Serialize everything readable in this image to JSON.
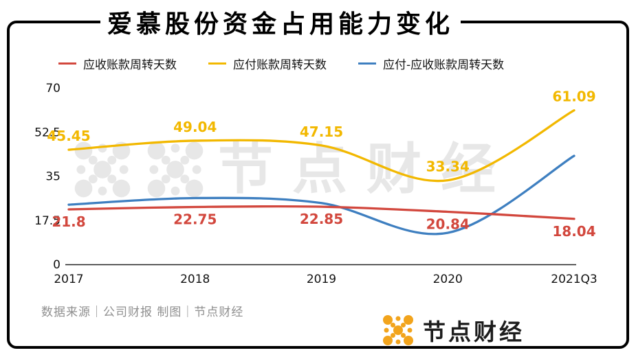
{
  "title": "爱慕股份资金占用能力变化",
  "legend": [
    {
      "label": "应收账款周转天数",
      "color": "#d2473d"
    },
    {
      "label": "应付账款周转天数",
      "color": "#f2b800"
    },
    {
      "label": "应付-应收账款周转天数",
      "color": "#3e7fc0"
    }
  ],
  "watermark": {
    "text": "节点财经"
  },
  "footer": {
    "source_text": "数据来源｜公司财报  制图｜节点财经"
  },
  "brand": {
    "name": "节点财经",
    "color": "#f2a41c"
  },
  "chart_data": {
    "type": "line",
    "categories": [
      "2017",
      "2018",
      "2019",
      "2020",
      "2021Q3"
    ],
    "series": [
      {
        "name": "应收账款周转天数",
        "color": "#d2473d",
        "values": [
          21.8,
          22.75,
          22.85,
          20.84,
          18.04
        ],
        "labels": [
          "21.8",
          "22.75",
          "22.85",
          "20.84",
          "18.04"
        ],
        "label_position": "below"
      },
      {
        "name": "应付账款周转天数",
        "color": "#f2b800",
        "values": [
          45.45,
          49.04,
          47.15,
          33.34,
          61.09
        ],
        "labels": [
          "45.45",
          "49.04",
          "47.15",
          "33.34",
          "61.09"
        ],
        "label_position": "above"
      },
      {
        "name": "应付-应收账款周转天数",
        "color": "#3e7fc0",
        "values": [
          23.65,
          26.29,
          24.3,
          12.5,
          43.05
        ],
        "labels": [],
        "label_position": "none"
      }
    ],
    "ylim": [
      0,
      70
    ],
    "yticks": [
      0,
      17.5,
      35,
      52.5,
      70
    ],
    "xlabel": "",
    "ylabel": "",
    "grid": false,
    "legend_position": "top"
  }
}
